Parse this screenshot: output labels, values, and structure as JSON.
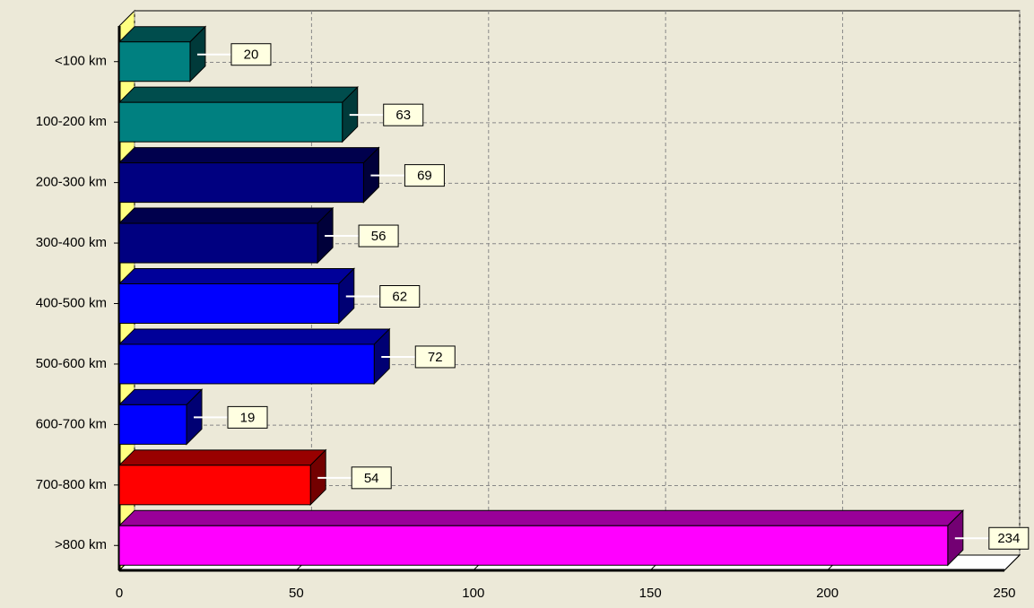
{
  "chart_data": {
    "type": "bar",
    "orientation": "horizontal",
    "categories": [
      "<100 km",
      "100-200 km",
      "200-300 km",
      "300-400 km",
      "400-500 km",
      "500-600 km",
      "600-700 km",
      "700-800 km",
      ">800 km"
    ],
    "values": [
      20,
      63,
      69,
      56,
      62,
      72,
      19,
      54,
      234
    ],
    "colors": [
      "#008080",
      "#008080",
      "#000080",
      "#000080",
      "#0000ff",
      "#0000ff",
      "#0000ff",
      "#ff0000",
      "#ff00ff"
    ],
    "xlim": [
      0,
      250
    ],
    "xticks": [
      0,
      50,
      100,
      150,
      200,
      250
    ],
    "grid": true
  }
}
